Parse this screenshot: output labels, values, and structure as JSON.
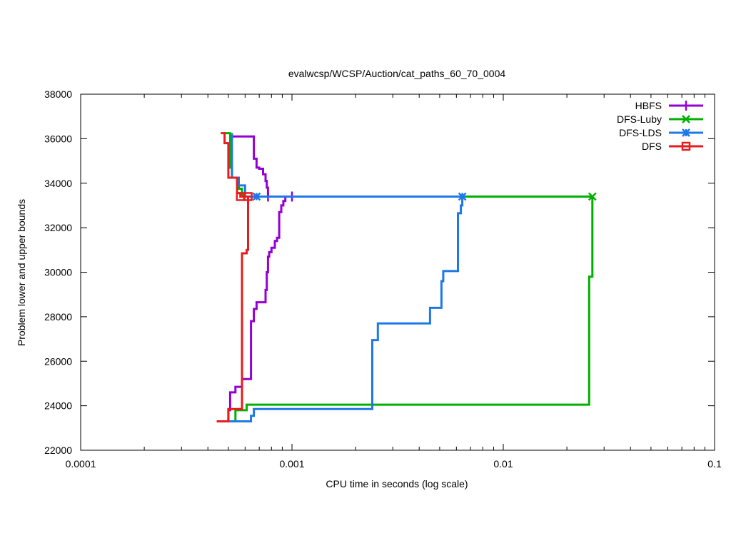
{
  "chart_data": {
    "type": "line",
    "title": "evalwcsp/WCSP/Auction/cat_paths_60_70_0004",
    "xlabel": "CPU time in seconds (log scale)",
    "ylabel": "Problem lower and upper bounds",
    "x_scale": "log",
    "xlim": [
      0.0001,
      0.1
    ],
    "ylim": [
      22000,
      38000
    ],
    "x_ticks": [
      {
        "value": 0.0001,
        "label": "0.0001"
      },
      {
        "value": 0.001,
        "label": "0.001"
      },
      {
        "value": 0.01,
        "label": "0.01"
      },
      {
        "value": 0.1,
        "label": "0.1"
      }
    ],
    "y_ticks": [
      {
        "value": 22000,
        "label": "22000"
      },
      {
        "value": 24000,
        "label": "24000"
      },
      {
        "value": 26000,
        "label": "26000"
      },
      {
        "value": 28000,
        "label": "28000"
      },
      {
        "value": 30000,
        "label": "30000"
      },
      {
        "value": 32000,
        "label": "32000"
      },
      {
        "value": 34000,
        "label": "34000"
      },
      {
        "value": 36000,
        "label": "36000"
      },
      {
        "value": 38000,
        "label": "38000"
      }
    ],
    "grid": false,
    "legend_position": "top-right",
    "series": [
      {
        "name": "HBFS",
        "color": "#9400d3",
        "marker": "plus",
        "upper": [
          [
            0.00052,
            36250
          ],
          [
            0.00052,
            36100
          ],
          [
            0.00058,
            36100
          ],
          [
            0.00066,
            36100
          ],
          [
            0.00066,
            35100
          ],
          [
            0.00068,
            35100
          ],
          [
            0.00068,
            34700
          ],
          [
            0.0007,
            34700
          ],
          [
            0.0007,
            34650
          ],
          [
            0.00073,
            34650
          ],
          [
            0.00073,
            34400
          ],
          [
            0.00075,
            34400
          ],
          [
            0.00075,
            34100
          ],
          [
            0.00076,
            34100
          ],
          [
            0.00076,
            33800
          ],
          [
            0.00077,
            33800
          ],
          [
            0.00077,
            33400
          ]
        ],
        "lower": [
          [
            0.0005,
            23300
          ],
          [
            0.0005,
            23800
          ],
          [
            0.00051,
            23800
          ],
          [
            0.00051,
            24600
          ],
          [
            0.00054,
            24600
          ],
          [
            0.00054,
            24850
          ],
          [
            0.00058,
            24850
          ],
          [
            0.00058,
            25200
          ],
          [
            0.00064,
            25200
          ],
          [
            0.00064,
            27800
          ],
          [
            0.00066,
            27800
          ],
          [
            0.00066,
            28350
          ],
          [
            0.00068,
            28350
          ],
          [
            0.00068,
            28650
          ],
          [
            0.00075,
            28650
          ],
          [
            0.00075,
            29200
          ],
          [
            0.00076,
            29200
          ],
          [
            0.00076,
            30000
          ],
          [
            0.00077,
            30000
          ],
          [
            0.00077,
            30700
          ],
          [
            0.00078,
            30700
          ],
          [
            0.00078,
            30900
          ],
          [
            0.0008,
            30900
          ],
          [
            0.0008,
            31100
          ],
          [
            0.00083,
            31100
          ],
          [
            0.00083,
            31400
          ],
          [
            0.00085,
            31400
          ],
          [
            0.00085,
            31550
          ],
          [
            0.00087,
            31550
          ],
          [
            0.00087,
            32700
          ],
          [
            0.00089,
            32700
          ],
          [
            0.00089,
            33000
          ],
          [
            0.00091,
            33000
          ],
          [
            0.00091,
            33200
          ],
          [
            0.00093,
            33200
          ],
          [
            0.00093,
            33400
          ],
          [
            0.001,
            33400
          ]
        ],
        "markers": [
          [
            0.00077,
            33400
          ],
          [
            0.001,
            33400
          ]
        ]
      },
      {
        "name": "DFS-Luby",
        "color": "#00b000",
        "marker": "cross",
        "upper": [
          [
            0.00048,
            36250
          ],
          [
            0.00051,
            36250
          ],
          [
            0.00051,
            34700
          ],
          [
            0.00052,
            34700
          ],
          [
            0.00052,
            34250
          ],
          [
            0.00056,
            34250
          ],
          [
            0.00056,
            33750
          ],
          [
            0.00058,
            33750
          ],
          [
            0.00058,
            33400
          ],
          [
            0.0264,
            33400
          ]
        ],
        "lower": [
          [
            0.00054,
            23300
          ],
          [
            0.00054,
            23800
          ],
          [
            0.00061,
            23800
          ],
          [
            0.00061,
            24050
          ],
          [
            0.0255,
            24050
          ],
          [
            0.0255,
            29800
          ],
          [
            0.0264,
            29800
          ],
          [
            0.0264,
            33400
          ]
        ],
        "markers": [
          [
            0.0264,
            33400
          ]
        ]
      },
      {
        "name": "DFS-LDS",
        "color": "#1e78e8",
        "marker": "star",
        "upper": [
          [
            0.00052,
            36250
          ],
          [
            0.00052,
            34250
          ],
          [
            0.00056,
            34250
          ],
          [
            0.00056,
            33900
          ],
          [
            0.0006,
            33900
          ],
          [
            0.0006,
            33400
          ],
          [
            0.00064,
            33400
          ],
          [
            0.0064,
            33400
          ]
        ],
        "lower": [
          [
            0.0005,
            23300
          ],
          [
            0.00064,
            23300
          ],
          [
            0.00064,
            23550
          ],
          [
            0.00066,
            23550
          ],
          [
            0.00066,
            23850
          ],
          [
            0.0024,
            23850
          ],
          [
            0.0024,
            26950
          ],
          [
            0.00255,
            26950
          ],
          [
            0.00255,
            27700
          ],
          [
            0.0045,
            27700
          ],
          [
            0.0045,
            28400
          ],
          [
            0.0051,
            28400
          ],
          [
            0.0051,
            29600
          ],
          [
            0.0052,
            29600
          ],
          [
            0.0052,
            30050
          ],
          [
            0.0061,
            30050
          ],
          [
            0.0061,
            32650
          ],
          [
            0.0063,
            32650
          ],
          [
            0.0063,
            33000
          ],
          [
            0.0064,
            33000
          ],
          [
            0.0064,
            33400
          ]
        ],
        "markers": [
          [
            0.00068,
            33400
          ],
          [
            0.0064,
            33400
          ]
        ]
      },
      {
        "name": "DFS",
        "color": "#e81c1c",
        "marker": "square",
        "upper": [
          [
            0.00046,
            36250
          ],
          [
            0.00048,
            36250
          ],
          [
            0.00048,
            35800
          ],
          [
            0.0005,
            35800
          ],
          [
            0.0005,
            34250
          ],
          [
            0.00055,
            34250
          ],
          [
            0.00055,
            33550
          ],
          [
            0.00057,
            33550
          ],
          [
            0.00057,
            33400
          ],
          [
            0.00063,
            33400
          ]
        ],
        "lower": [
          [
            0.00044,
            23300
          ],
          [
            0.0005,
            23300
          ],
          [
            0.0005,
            23850
          ],
          [
            0.00058,
            23850
          ],
          [
            0.00058,
            30850
          ],
          [
            0.00061,
            30850
          ],
          [
            0.00061,
            31000
          ],
          [
            0.00062,
            31000
          ],
          [
            0.00062,
            33400
          ]
        ],
        "markers": [
          [
            0.00057,
            33400
          ],
          [
            0.00062,
            33400
          ]
        ]
      }
    ]
  }
}
